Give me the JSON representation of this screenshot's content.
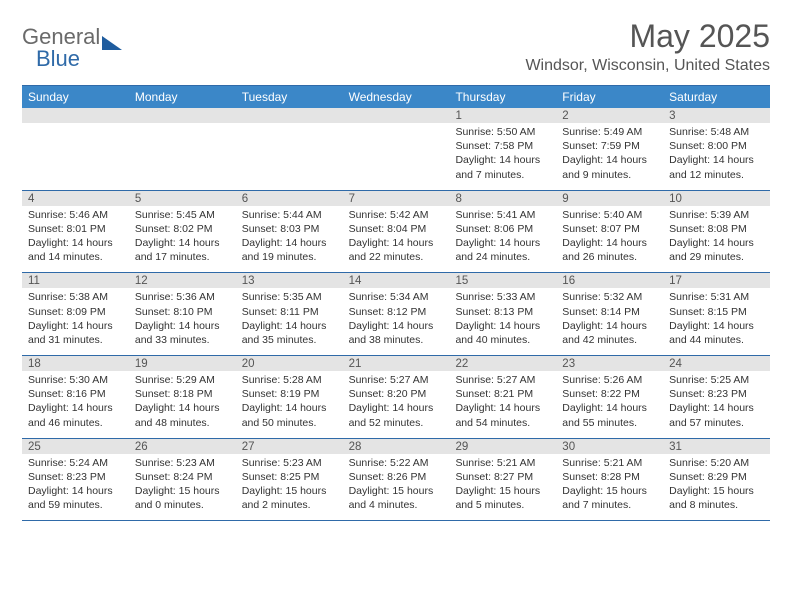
{
  "logo": {
    "part1": "General",
    "part2": "Blue"
  },
  "header": {
    "title": "May 2025",
    "location": "Windsor, Wisconsin, United States"
  },
  "daysOfWeek": [
    "Sunday",
    "Monday",
    "Tuesday",
    "Wednesday",
    "Thursday",
    "Friday",
    "Saturday"
  ],
  "colors": {
    "headerBar": "#3b87c8",
    "daynumStrip": "#e4e4e4",
    "rule": "#2f6aa8"
  },
  "weeks": [
    [
      {
        "n": "",
        "sr": "",
        "ss": "",
        "dl": ""
      },
      {
        "n": "",
        "sr": "",
        "ss": "",
        "dl": ""
      },
      {
        "n": "",
        "sr": "",
        "ss": "",
        "dl": ""
      },
      {
        "n": "",
        "sr": "",
        "ss": "",
        "dl": ""
      },
      {
        "n": "1",
        "sr": "Sunrise: 5:50 AM",
        "ss": "Sunset: 7:58 PM",
        "dl": "Daylight: 14 hours and 7 minutes."
      },
      {
        "n": "2",
        "sr": "Sunrise: 5:49 AM",
        "ss": "Sunset: 7:59 PM",
        "dl": "Daylight: 14 hours and 9 minutes."
      },
      {
        "n": "3",
        "sr": "Sunrise: 5:48 AM",
        "ss": "Sunset: 8:00 PM",
        "dl": "Daylight: 14 hours and 12 minutes."
      }
    ],
    [
      {
        "n": "4",
        "sr": "Sunrise: 5:46 AM",
        "ss": "Sunset: 8:01 PM",
        "dl": "Daylight: 14 hours and 14 minutes."
      },
      {
        "n": "5",
        "sr": "Sunrise: 5:45 AM",
        "ss": "Sunset: 8:02 PM",
        "dl": "Daylight: 14 hours and 17 minutes."
      },
      {
        "n": "6",
        "sr": "Sunrise: 5:44 AM",
        "ss": "Sunset: 8:03 PM",
        "dl": "Daylight: 14 hours and 19 minutes."
      },
      {
        "n": "7",
        "sr": "Sunrise: 5:42 AM",
        "ss": "Sunset: 8:04 PM",
        "dl": "Daylight: 14 hours and 22 minutes."
      },
      {
        "n": "8",
        "sr": "Sunrise: 5:41 AM",
        "ss": "Sunset: 8:06 PM",
        "dl": "Daylight: 14 hours and 24 minutes."
      },
      {
        "n": "9",
        "sr": "Sunrise: 5:40 AM",
        "ss": "Sunset: 8:07 PM",
        "dl": "Daylight: 14 hours and 26 minutes."
      },
      {
        "n": "10",
        "sr": "Sunrise: 5:39 AM",
        "ss": "Sunset: 8:08 PM",
        "dl": "Daylight: 14 hours and 29 minutes."
      }
    ],
    [
      {
        "n": "11",
        "sr": "Sunrise: 5:38 AM",
        "ss": "Sunset: 8:09 PM",
        "dl": "Daylight: 14 hours and 31 minutes."
      },
      {
        "n": "12",
        "sr": "Sunrise: 5:36 AM",
        "ss": "Sunset: 8:10 PM",
        "dl": "Daylight: 14 hours and 33 minutes."
      },
      {
        "n": "13",
        "sr": "Sunrise: 5:35 AM",
        "ss": "Sunset: 8:11 PM",
        "dl": "Daylight: 14 hours and 35 minutes."
      },
      {
        "n": "14",
        "sr": "Sunrise: 5:34 AM",
        "ss": "Sunset: 8:12 PM",
        "dl": "Daylight: 14 hours and 38 minutes."
      },
      {
        "n": "15",
        "sr": "Sunrise: 5:33 AM",
        "ss": "Sunset: 8:13 PM",
        "dl": "Daylight: 14 hours and 40 minutes."
      },
      {
        "n": "16",
        "sr": "Sunrise: 5:32 AM",
        "ss": "Sunset: 8:14 PM",
        "dl": "Daylight: 14 hours and 42 minutes."
      },
      {
        "n": "17",
        "sr": "Sunrise: 5:31 AM",
        "ss": "Sunset: 8:15 PM",
        "dl": "Daylight: 14 hours and 44 minutes."
      }
    ],
    [
      {
        "n": "18",
        "sr": "Sunrise: 5:30 AM",
        "ss": "Sunset: 8:16 PM",
        "dl": "Daylight: 14 hours and 46 minutes."
      },
      {
        "n": "19",
        "sr": "Sunrise: 5:29 AM",
        "ss": "Sunset: 8:18 PM",
        "dl": "Daylight: 14 hours and 48 minutes."
      },
      {
        "n": "20",
        "sr": "Sunrise: 5:28 AM",
        "ss": "Sunset: 8:19 PM",
        "dl": "Daylight: 14 hours and 50 minutes."
      },
      {
        "n": "21",
        "sr": "Sunrise: 5:27 AM",
        "ss": "Sunset: 8:20 PM",
        "dl": "Daylight: 14 hours and 52 minutes."
      },
      {
        "n": "22",
        "sr": "Sunrise: 5:27 AM",
        "ss": "Sunset: 8:21 PM",
        "dl": "Daylight: 14 hours and 54 minutes."
      },
      {
        "n": "23",
        "sr": "Sunrise: 5:26 AM",
        "ss": "Sunset: 8:22 PM",
        "dl": "Daylight: 14 hours and 55 minutes."
      },
      {
        "n": "24",
        "sr": "Sunrise: 5:25 AM",
        "ss": "Sunset: 8:23 PM",
        "dl": "Daylight: 14 hours and 57 minutes."
      }
    ],
    [
      {
        "n": "25",
        "sr": "Sunrise: 5:24 AM",
        "ss": "Sunset: 8:23 PM",
        "dl": "Daylight: 14 hours and 59 minutes."
      },
      {
        "n": "26",
        "sr": "Sunrise: 5:23 AM",
        "ss": "Sunset: 8:24 PM",
        "dl": "Daylight: 15 hours and 0 minutes."
      },
      {
        "n": "27",
        "sr": "Sunrise: 5:23 AM",
        "ss": "Sunset: 8:25 PM",
        "dl": "Daylight: 15 hours and 2 minutes."
      },
      {
        "n": "28",
        "sr": "Sunrise: 5:22 AM",
        "ss": "Sunset: 8:26 PM",
        "dl": "Daylight: 15 hours and 4 minutes."
      },
      {
        "n": "29",
        "sr": "Sunrise: 5:21 AM",
        "ss": "Sunset: 8:27 PM",
        "dl": "Daylight: 15 hours and 5 minutes."
      },
      {
        "n": "30",
        "sr": "Sunrise: 5:21 AM",
        "ss": "Sunset: 8:28 PM",
        "dl": "Daylight: 15 hours and 7 minutes."
      },
      {
        "n": "31",
        "sr": "Sunrise: 5:20 AM",
        "ss": "Sunset: 8:29 PM",
        "dl": "Daylight: 15 hours and 8 minutes."
      }
    ]
  ]
}
